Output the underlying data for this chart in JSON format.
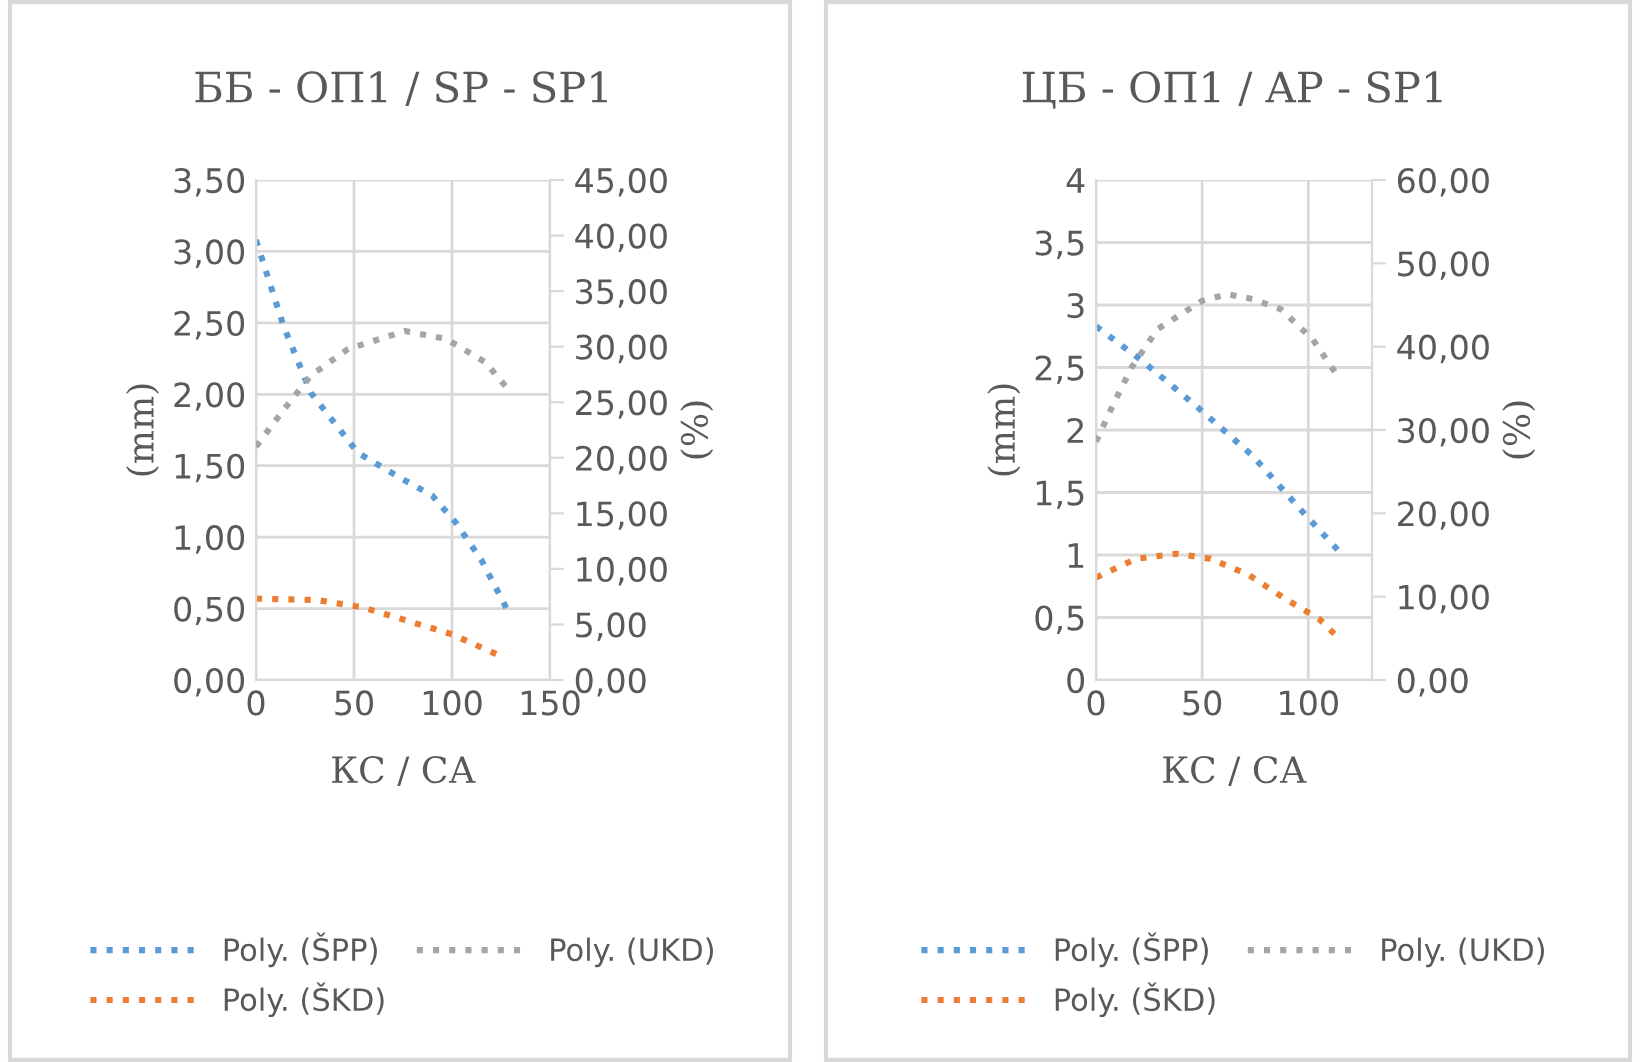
{
  "chart_data": [
    {
      "type": "line",
      "title": "ББ - ОП1 / SP - SP1",
      "xlabel": "КС / СА",
      "ylabel": "(mm)",
      "y2label": "(%)",
      "xlim": [
        0,
        150
      ],
      "xticks": [
        0,
        50,
        100,
        150
      ],
      "ylim": [
        0,
        3.5
      ],
      "yticks": [
        {
          "value": 0,
          "label": "0,00"
        },
        {
          "value": 0.5,
          "label": "0,50"
        },
        {
          "value": 1,
          "label": "1,00"
        },
        {
          "value": 1.5,
          "label": "1,50"
        },
        {
          "value": 2,
          "label": "2,00"
        },
        {
          "value": 2.5,
          "label": "2,50"
        },
        {
          "value": 3,
          "label": "3,00"
        },
        {
          "value": 3.5,
          "label": "3,50"
        }
      ],
      "y2lim": [
        0,
        45
      ],
      "y2ticks": [
        {
          "value": 0,
          "label": "0,00"
        },
        {
          "value": 5,
          "label": "5,00"
        },
        {
          "value": 10,
          "label": "10,00"
        },
        {
          "value": 15,
          "label": "15,00"
        },
        {
          "value": 20,
          "label": "20,00"
        },
        {
          "value": 25,
          "label": "25,00"
        },
        {
          "value": 30,
          "label": "30,00"
        },
        {
          "value": 35,
          "label": "35,00"
        },
        {
          "value": 40,
          "label": "40,00"
        },
        {
          "value": 45,
          "label": "45,00"
        }
      ],
      "grid": true,
      "legend": "bottom",
      "line_style": "dotted",
      "marker": "none",
      "series": [
        {
          "name": "Poly. (ŠPP)",
          "color": "#5b9bd5",
          "x": [
            0,
            14,
            28,
            52,
            73,
            90,
            102,
            115,
            129
          ],
          "values": [
            3.08,
            2.48,
            2.01,
            1.59,
            1.42,
            1.29,
            1.1,
            0.84,
            0.47
          ]
        },
        {
          "name": "Poly. (ŠKD)",
          "color": "#ed7d31",
          "x": [
            0,
            31,
            54,
            76,
            100,
            126
          ],
          "values": [
            0.57,
            0.56,
            0.51,
            0.42,
            0.32,
            0.16
          ]
        },
        {
          "name": "Poly. (UKD)",
          "color": "#a5a5a5",
          "axis": "y2",
          "x": [
            0,
            14,
            28,
            47,
            76,
            97,
            117,
            128
          ],
          "values": [
            21.0,
            24.3,
            27.4,
            29.8,
            31.4,
            30.7,
            28.6,
            26.3
          ]
        }
      ]
    },
    {
      "type": "line",
      "title": "ЦБ - ОП1 / AP - SP1",
      "xlabel": "КС / СА",
      "ylabel": "(mm)",
      "y2label": "(%)",
      "xlim": [
        0,
        130
      ],
      "xticks": [
        0,
        50,
        100
      ],
      "ylim": [
        0,
        4
      ],
      "yticks": [
        0,
        {
          "value": 0.5,
          "label": "0,5"
        },
        1,
        {
          "value": 1.5,
          "label": "1,5"
        },
        2,
        {
          "value": 2.5,
          "label": "2,5"
        },
        3,
        {
          "value": 3.5,
          "label": "3,5"
        },
        4
      ],
      "y2lim": [
        0,
        60
      ],
      "y2ticks": [
        {
          "value": 0,
          "label": "0,00"
        },
        {
          "value": 10,
          "label": "10,00"
        },
        {
          "value": 20,
          "label": "20,00"
        },
        {
          "value": 30,
          "label": "30,00"
        },
        {
          "value": 40,
          "label": "40,00"
        },
        {
          "value": 50,
          "label": "50,00"
        },
        {
          "value": 60,
          "label": "60,00"
        }
      ],
      "grid": true,
      "legend": "bottom",
      "line_style": "dotted",
      "marker": "none",
      "series": [
        {
          "name": "Poly. (ŠPP)",
          "color": "#5b9bd5",
          "x": [
            0,
            22,
            48,
            74,
            96,
            115
          ],
          "values": [
            2.83,
            2.55,
            2.18,
            1.79,
            1.37,
            1.02
          ]
        },
        {
          "name": "Poly. (ŠKD)",
          "color": "#ed7d31",
          "x": [
            0,
            19,
            38,
            54,
            72,
            90,
            105,
            114
          ],
          "values": [
            0.82,
            0.97,
            1.01,
            0.97,
            0.84,
            0.64,
            0.49,
            0.34
          ]
        },
        {
          "name": "Poly. (UKD)",
          "color": "#a5a5a5",
          "axis": "y2",
          "x": [
            0,
            8,
            17,
            29,
            50,
            62,
            74,
            87,
            102,
            114
          ],
          "values": [
            28.6,
            33.0,
            37.6,
            42.1,
            45.5,
            46.3,
            45.7,
            44.5,
            40.9,
            36.4
          ]
        }
      ]
    }
  ]
}
